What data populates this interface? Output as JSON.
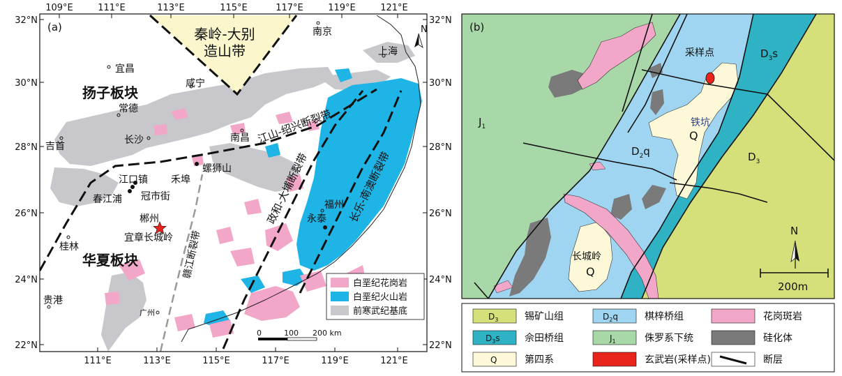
{
  "panel_a": {
    "label": "(a)",
    "top_ticks": [
      "109°E",
      "111°E",
      "113°E",
      "115°E",
      "117°E",
      "119°E",
      "121°E"
    ],
    "bottom_ticks": [
      "111°E",
      "113°E",
      "115°E",
      "117°E",
      "119°E",
      "121°E"
    ],
    "left_ticks": [
      "32°N",
      "30°N",
      "28°N",
      "26°N",
      "24°N",
      "22°N"
    ],
    "right_ticks": [
      "32°N",
      "30°N",
      "28°N",
      "26°N",
      "24°N",
      "22°N"
    ],
    "north": "N",
    "belt_name_line1": "秦岭-大别",
    "belt_name_line2": "造山带",
    "block_yangtze": "扬子板块",
    "block_cathaysia": "华夏板块",
    "faults": {
      "jiangshan": "江山-绍兴断裂带",
      "zhenghe": "政和-大埔断裂带",
      "changle": "长乐-南澳断裂带",
      "ganjiang": "赣江断裂带"
    },
    "cities": {
      "nanjing": "南京",
      "shanghai": "上海",
      "yichang": "宜昌",
      "xianning": "咸宁",
      "changde": "常德",
      "nanchang": "南昌",
      "jishou": "吉首",
      "changsha": "长沙",
      "luoshishan": "螺狮山",
      "hebu": "禾埠",
      "jiangkouzhen": "江口镇",
      "guanshijie": "冠市街",
      "chunjiangpu": "春江浦",
      "chenzhou": "郴州",
      "yizhang": "宜章长城岭",
      "guilin": "桂林",
      "fuzhou": "福州",
      "yongtai": "永泰",
      "guangzhou": "广州",
      "guigang": "贵港"
    },
    "legend": [
      {
        "label": "白垩纪花岗岩",
        "color": "#f2a6c8"
      },
      {
        "label": "白垩纪火山岩",
        "color": "#1eb4e6"
      },
      {
        "label": "前寒武纪基底",
        "color": "#c8c8cc"
      }
    ],
    "scale": {
      "zero": "0",
      "mid": "100",
      "end": "200 km"
    }
  },
  "panel_b": {
    "label": "(b)",
    "north": "N",
    "scale": "200m",
    "map_labels": {
      "sample_point": "采样点",
      "tiekeng": "铁坑",
      "q_main": "Q",
      "q_lower": "Q",
      "changchengling": "长城岭",
      "j1": "J",
      "j1_sub": "1",
      "d2q": "D",
      "d2q_sub": "2",
      "d2q_suffix": "q",
      "d3": "D",
      "d3_sub": "3",
      "d3s": "D",
      "d3s_sub": "3",
      "d3s_suffix": "s"
    },
    "legend": [
      {
        "code": "D3",
        "label": "锡矿山组",
        "color": "#d6e07a"
      },
      {
        "code": "D2q",
        "label": "棋梓桥组",
        "color": "#9fd5f0"
      },
      {
        "code": "",
        "label": "花岗斑岩",
        "color": "#f2a6c8"
      },
      {
        "code": "D3s",
        "label": "佘田桥组",
        "color": "#2fb3c4"
      },
      {
        "code": "J1",
        "label": "侏罗系下统",
        "color": "#a8d8a8"
      },
      {
        "code": "",
        "label": "硅化体",
        "color": "#7a7a7a"
      },
      {
        "code": "Q",
        "label": "第四系",
        "color": "#fdf8d8"
      },
      {
        "code": "",
        "label": "玄武岩(采样点)",
        "color": "#e8241c"
      },
      {
        "code": "",
        "label": "断层",
        "color": "#111111"
      }
    ]
  },
  "colors": {
    "granite": "#f2a6c8",
    "volcanic": "#1eb4e6",
    "basement": "#c8c8cc",
    "belt": "#fbf6cc",
    "d3": "#d6e07a",
    "d2q": "#9fd5f0",
    "d3s": "#2fb3c4",
    "j1": "#a8d8a8",
    "q": "#fdf8d8",
    "silicified": "#7a7a7a",
    "basalt": "#e8241c"
  }
}
